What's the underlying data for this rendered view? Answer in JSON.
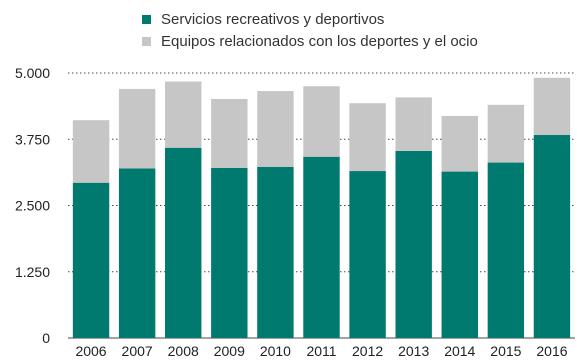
{
  "chart_data": {
    "type": "bar",
    "stacked": true,
    "categories": [
      "2006",
      "2007",
      "2008",
      "2009",
      "2010",
      "2011",
      "2012",
      "2013",
      "2014",
      "2015",
      "2016"
    ],
    "series": [
      {
        "name": "Servicios recreativos y deportivos",
        "color": "#00796f",
        "values": [
          2930,
          3200,
          3590,
          3210,
          3230,
          3420,
          3150,
          3530,
          3140,
          3310,
          3830
        ]
      },
      {
        "name": "Equipos relacionados con los deportes y el ocio",
        "color": "#c6c6c6",
        "values": [
          1180,
          1500,
          1250,
          1300,
          1430,
          1330,
          1280,
          1010,
          1050,
          1090,
          1080
        ]
      }
    ],
    "ylim": [
      0,
      5000
    ],
    "yticks": [
      0,
      1250,
      2500,
      3750,
      5000
    ],
    "ytick_labels": [
      "0",
      "1.250",
      "2.500",
      "3.750",
      "5.000"
    ],
    "grid": "horizontal dotted",
    "legend": "top"
  }
}
